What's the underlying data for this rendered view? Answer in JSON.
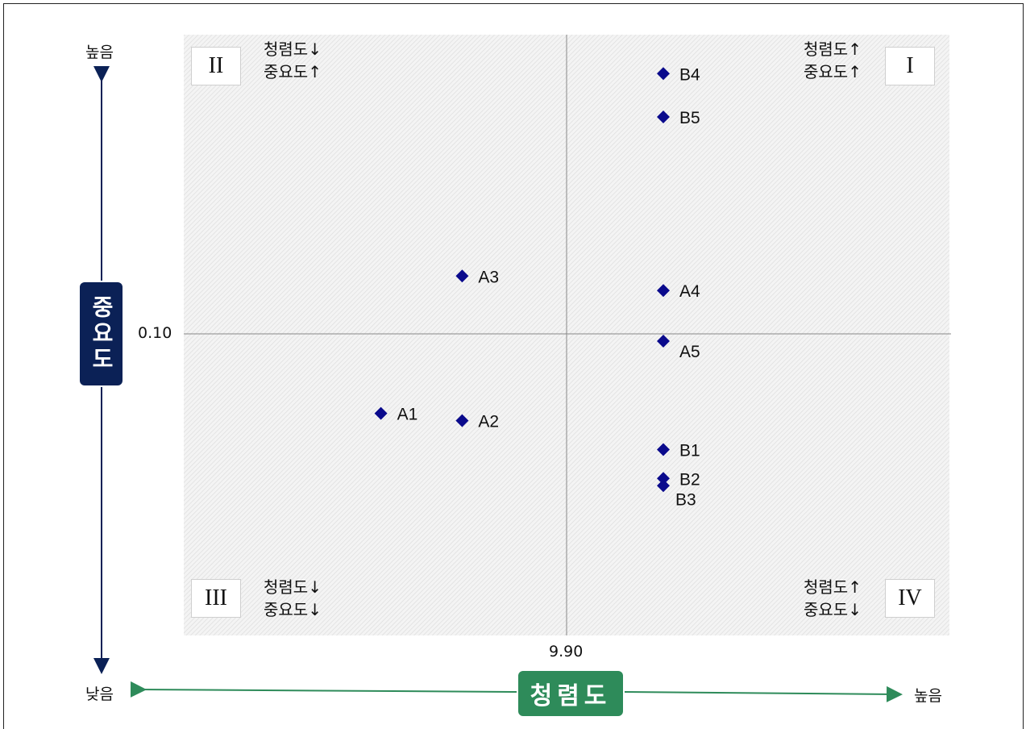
{
  "chart_data": {
    "type": "scatter",
    "xlabel": "청렴도",
    "ylabel": "중요도",
    "x_threshold_label": "9.90",
    "y_threshold_label": "0.10",
    "x_low_label": "낮음",
    "x_high_label": "높음",
    "y_high_label": "높음",
    "y_low_label": "낮음",
    "points": [
      {
        "label": "A1",
        "x": 9.42,
        "y": 0.045
      },
      {
        "label": "A2",
        "x": 9.63,
        "y": 0.04
      },
      {
        "label": "A3",
        "x": 9.63,
        "y": 0.14
      },
      {
        "label": "A4",
        "x": 10.15,
        "y": 0.13
      },
      {
        "label": "A5",
        "x": 10.15,
        "y": 0.095
      },
      {
        "label": "B1",
        "x": 10.15,
        "y": 0.02
      },
      {
        "label": "B2",
        "x": 10.15,
        "y": 0.0
      },
      {
        "label": "B3",
        "x": 10.15,
        "y": -0.005
      },
      {
        "label": "B4",
        "x": 10.15,
        "y": 0.28
      },
      {
        "label": "B5",
        "x": 10.15,
        "y": 0.25
      }
    ],
    "quadrants": [
      {
        "id": "I",
        "line1": "청렴도",
        "arrow1": "↑",
        "line2": "중요도",
        "arrow2": "↑"
      },
      {
        "id": "II",
        "line1": "청렴도",
        "arrow1": "↓",
        "line2": "중요도",
        "arrow2": "↑"
      },
      {
        "id": "III",
        "line1": "청렴도",
        "arrow1": "↓",
        "line2": "중요도",
        "arrow2": "↓"
      },
      {
        "id": "IV",
        "line1": "청렴도",
        "arrow1": "↑",
        "line2": "중요도",
        "arrow2": "↓"
      }
    ],
    "colors": {
      "marker": "#0a0a8c",
      "y_axis": "#0b2156",
      "x_axis": "#2e8b5a"
    },
    "grid": false
  }
}
